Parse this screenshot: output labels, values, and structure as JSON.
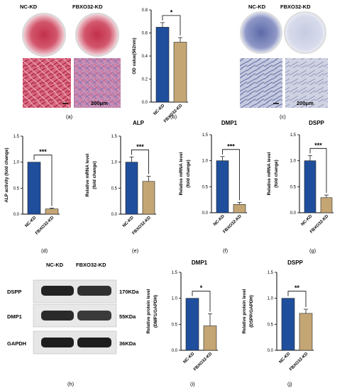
{
  "photo_panels": {
    "a": {
      "label_left": "NC-KD",
      "label_right": "FBXO32-KD",
      "scale": "200μm"
    },
    "c": {
      "label_left": "NC-KD",
      "label_right": "FBXO32-KD",
      "scale": "200μm"
    }
  },
  "western_blot": {
    "col_left": "NC-KD",
    "col_right": "FBXO32-KD",
    "rows": [
      {
        "protein": "DSPP",
        "size": "170KDa"
      },
      {
        "protein": "DMP1",
        "size": "55KDa"
      },
      {
        "protein": "GAPDH",
        "size": "36KDa"
      }
    ]
  },
  "panel_labels": {
    "a": "(a)",
    "b": "(b)",
    "c": "(c)",
    "d": "(d)",
    "e": "(e)",
    "f": "(f)",
    "g": "(g)",
    "h": "(h)",
    "i": "(i)",
    "j": "(j)"
  },
  "colors": {
    "nc": "#1f4e9c",
    "kd": "#c4a574"
  },
  "chart_data": [
    {
      "id": "b",
      "type": "bar",
      "title": "",
      "ylabel": "OD value(562nm)",
      "ylim": [
        0,
        0.8
      ],
      "yticks": [
        "0.0",
        "0.2",
        "0.4",
        "0.6",
        "0.8"
      ],
      "categories": [
        "NC-KD",
        "FBXO32-KD"
      ],
      "values": [
        0.65,
        0.52
      ],
      "errors": [
        0.04,
        0.04
      ],
      "significance": "*"
    },
    {
      "id": "d",
      "type": "bar",
      "title": "",
      "ylabel": "ALP activity (fold change)",
      "ylim": [
        0,
        1.5
      ],
      "yticks": [
        "0.0",
        "0.5",
        "1.0",
        "1.5"
      ],
      "categories": [
        "NC-KD",
        "FBXO32-KD"
      ],
      "values": [
        1.0,
        0.1
      ],
      "errors": [
        0.0,
        0.015
      ],
      "significance": "***"
    },
    {
      "id": "e",
      "type": "bar",
      "title": "ALP",
      "ylabel": "Relative mRNA level (fold change)",
      "ylim": [
        0,
        1.5
      ],
      "yticks": [
        "0.0",
        "0.5",
        "1.0",
        "1.5"
      ],
      "categories": [
        "NC-KD",
        "FBXO32-KD"
      ],
      "values": [
        1.0,
        0.63
      ],
      "errors": [
        0.1,
        0.1
      ],
      "significance": "***"
    },
    {
      "id": "f",
      "type": "bar",
      "title": "DMP1",
      "ylabel": "Relative mRNA level (fold change)",
      "ylim": [
        0,
        1.5
      ],
      "yticks": [
        "0.0",
        "0.5",
        "1.0",
        "1.5"
      ],
      "categories": [
        "NC-KD",
        "FBXO32-KD"
      ],
      "values": [
        1.0,
        0.16
      ],
      "errors": [
        0.08,
        0.04
      ],
      "significance": "***"
    },
    {
      "id": "g",
      "type": "bar",
      "title": "DSPP",
      "ylabel": "Relative mRNA level (fold change)",
      "ylim": [
        0,
        1.5
      ],
      "yticks": [
        "0.0",
        "0.5",
        "1.0",
        "1.5"
      ],
      "categories": [
        "NC-KD",
        "FBXO32-KD"
      ],
      "values": [
        1.0,
        0.29
      ],
      "errors": [
        0.1,
        0.05
      ],
      "significance": "***"
    },
    {
      "id": "i",
      "type": "bar",
      "title": "DMP1",
      "ylabel": "Relative protein level (DMP1/GAPDH)",
      "ylim": [
        0,
        1.5
      ],
      "yticks": [
        "0.0",
        "0.5",
        "1.0",
        "1.5"
      ],
      "categories": [
        "NC-KD",
        "FBXO32-KD"
      ],
      "values": [
        1.0,
        0.47
      ],
      "errors": [
        0.0,
        0.23
      ],
      "significance": "*"
    },
    {
      "id": "j",
      "type": "bar",
      "title": "DSPP",
      "ylabel": "Relative protein level (DSPP/GAPDH)",
      "ylim": [
        0,
        1.5
      ],
      "yticks": [
        "0.0",
        "0.5",
        "1.0",
        "1.5"
      ],
      "categories": [
        "NC-KD",
        "FBXO32-KD"
      ],
      "values": [
        1.0,
        0.71
      ],
      "errors": [
        0.0,
        0.08
      ],
      "significance": "**"
    }
  ]
}
